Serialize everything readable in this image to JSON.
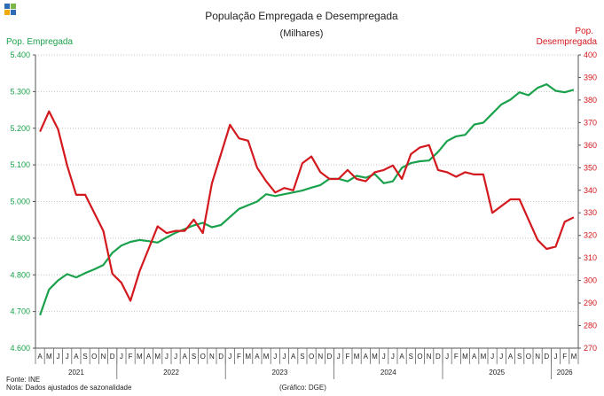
{
  "logo": {
    "name": "ine-logo-icon",
    "colors": [
      "#2e6db4",
      "#7ab648",
      "#f2a900",
      "#2e6db4"
    ]
  },
  "chart_data": {
    "type": "line",
    "title": "População Empregada e Desempregada",
    "subtitle": "(Milhares)",
    "y_left": {
      "label": "Pop. Empregada",
      "min": 4600,
      "max": 5400,
      "step": 100,
      "tick_labels": [
        "4.600",
        "4.700",
        "4.800",
        "4.900",
        "5.000",
        "5.100",
        "5.200",
        "5.300",
        "5.400"
      ],
      "color": "#1aa14b"
    },
    "y_right": {
      "label_line1": "Pop.",
      "label_line2": "Desempregada",
      "min": 270,
      "max": 400,
      "step": 10,
      "tick_labels": [
        "270",
        "280",
        "290",
        "300",
        "310",
        "320",
        "330",
        "340",
        "350",
        "360",
        "370",
        "380",
        "390",
        "400"
      ],
      "color": "#d3181e"
    },
    "months": [
      "A",
      "M",
      "J",
      "J",
      "A",
      "S",
      "O",
      "N",
      "D",
      "J",
      "F",
      "M",
      "A",
      "M",
      "J",
      "J",
      "A",
      "S",
      "O",
      "N",
      "D",
      "J",
      "F",
      "M",
      "A",
      "M",
      "J",
      "J",
      "A",
      "S",
      "O",
      "N",
      "D",
      "J",
      "F",
      "M",
      "A",
      "M",
      "J",
      "J",
      "A",
      "S",
      "O",
      "N",
      "D",
      "J",
      "F",
      "M",
      "A",
      "M",
      "J",
      "J",
      "A",
      "S",
      "O",
      "N",
      "D",
      "J",
      "F",
      "M"
    ],
    "years": [
      {
        "label": "2021",
        "start": 0,
        "end": 9
      },
      {
        "label": "2022",
        "start": 9,
        "end": 21
      },
      {
        "label": "2023",
        "start": 21,
        "end": 33
      },
      {
        "label": "2024",
        "start": 33,
        "end": 45
      },
      {
        "label": "2025",
        "start": 45,
        "end": 57
      },
      {
        "label": "2026",
        "start": 57,
        "end": 60
      }
    ],
    "series": [
      {
        "name": "Pop. Empregada",
        "axis": "left",
        "color": "#1aa14b",
        "values": [
          4690,
          4760,
          4785,
          4802,
          4793,
          4805,
          4815,
          4827,
          4860,
          4880,
          4890,
          4895,
          4892,
          4888,
          4902,
          4915,
          4925,
          4935,
          4942,
          4930,
          4936,
          4958,
          4980,
          4990,
          5000,
          5020,
          5015,
          5020,
          5025,
          5030,
          5038,
          5045,
          5062,
          5062,
          5055,
          5070,
          5065,
          5075,
          5050,
          5055,
          5092,
          5105,
          5110,
          5112,
          5135,
          5165,
          5178,
          5182,
          5210,
          5215,
          5240,
          5265,
          5278,
          5298,
          5290,
          5310,
          5320,
          5302,
          5298,
          5305
        ]
      },
      {
        "name": "Pop. Desempregada",
        "axis": "right",
        "color": "#d3181e",
        "values": [
          366,
          375,
          367,
          351,
          338,
          338,
          330,
          322,
          303,
          299,
          291,
          304,
          314,
          324,
          321,
          322,
          322,
          327,
          321,
          343,
          356,
          369,
          363,
          362,
          350,
          344,
          339,
          341,
          340,
          352,
          355,
          348,
          345,
          345,
          349,
          345,
          344,
          348,
          349,
          351,
          345,
          356,
          359,
          360,
          349,
          348,
          346,
          348,
          347,
          347,
          330,
          333,
          336,
          336,
          327,
          318,
          314,
          315,
          326,
          328
        ]
      }
    ]
  },
  "footer": {
    "source": "Fonte: INE",
    "note": "Nota: Dados ajustados de sazonalidade",
    "credit": "(Gráfico: DGE)"
  }
}
